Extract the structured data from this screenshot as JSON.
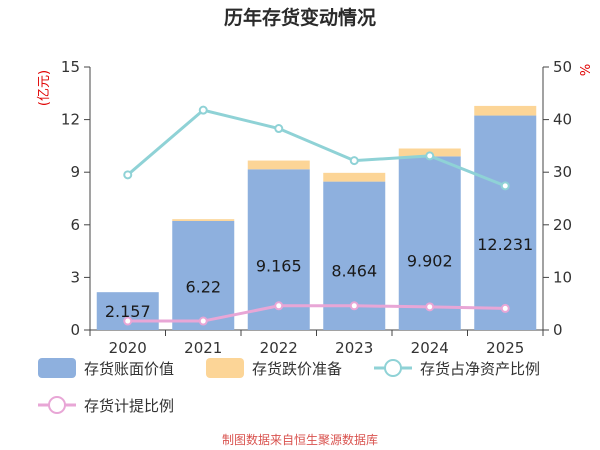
{
  "chart_data": {
    "type": "bar",
    "title": "历年存货变动情况",
    "ylabel_left": "(亿元)",
    "ylabel_right": "%",
    "categories": [
      "2020",
      "2021",
      "2022",
      "2023",
      "2024",
      "2025"
    ],
    "ylim_left": [
      0,
      15
    ],
    "yticks_left": [
      "0",
      "3",
      "6",
      "9",
      "12",
      "15"
    ],
    "ylim_right": [
      0,
      50
    ],
    "yticks_right": [
      "0",
      "10",
      "20",
      "30",
      "40",
      "50"
    ],
    "series": [
      {
        "name": "存货账面价值",
        "kind": "bar",
        "axis": "left",
        "color": "#8eb0de",
        "values": [
          2.157,
          6.22,
          9.165,
          8.464,
          9.902,
          12.231
        ],
        "labels": [
          "2.157",
          "6.22",
          "9.165",
          "8.464",
          "9.902",
          "12.231"
        ]
      },
      {
        "name": "存货跌价准备",
        "kind": "bar-stacked",
        "axis": "left",
        "color": "#fcd597",
        "values": [
          0.0,
          0.1,
          0.5,
          0.5,
          0.45,
          0.55
        ]
      },
      {
        "name": "存货占净资产比例",
        "kind": "line",
        "axis": "right",
        "color": "#8fd2d6",
        "values": [
          29.5,
          41.8,
          38.3,
          32.2,
          33.1,
          27.4
        ]
      },
      {
        "name": "存货计提比例",
        "kind": "line",
        "axis": "right",
        "color": "#e8a6d6",
        "values": [
          1.7,
          1.7,
          4.6,
          4.6,
          4.4,
          4.1
        ]
      }
    ],
    "legend_position": "bottom",
    "grid": false
  },
  "source_text": "制图数据来自恒生聚源数据库"
}
